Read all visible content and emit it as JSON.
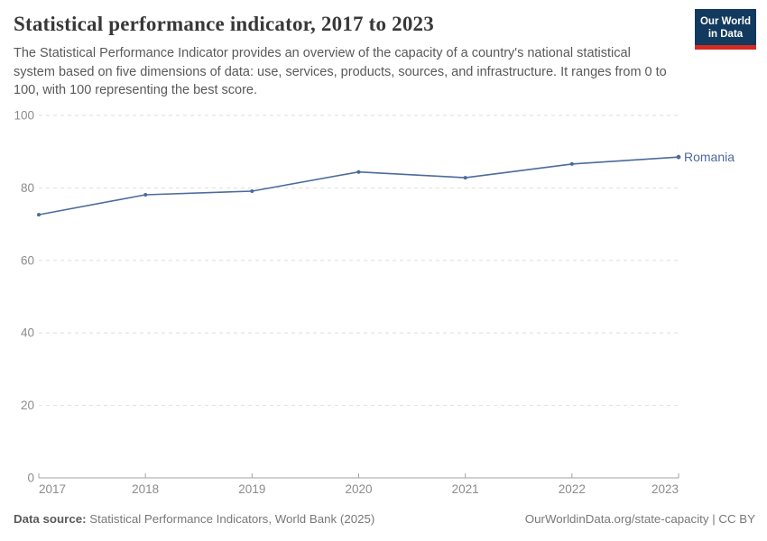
{
  "header": {
    "title": "Statistical performance indicator, 2017 to 2023",
    "subtitle": "The Statistical Performance Indicator provides an overview of the capacity of a country's national statistical system based on five dimensions of data: use, services, products, sources, and infrastructure. It ranges from 0 to 100, with 100 representing the best score.",
    "logo": {
      "line1": "Our World",
      "line2": "in Data"
    }
  },
  "chart_data": {
    "type": "line",
    "title": "Statistical performance indicator, 2017 to 2023",
    "x": [
      2017,
      2018,
      2019,
      2020,
      2021,
      2022,
      2023
    ],
    "series": [
      {
        "name": "Romania",
        "values": [
          72.6,
          78.1,
          79.1,
          84.4,
          82.8,
          86.6,
          88.5
        ],
        "color": "#4C6A9C"
      }
    ],
    "xlabel": "",
    "ylabel": "",
    "ylim": [
      0,
      100
    ],
    "yticks": [
      0,
      20,
      40,
      60,
      80,
      100
    ],
    "grid": "horizontal-dashed",
    "legend": "end-of-line-label"
  },
  "footer": {
    "source_label": "Data source:",
    "source_text": "Statistical Performance Indicators, World Bank (2025)",
    "credit": "OurWorldinData.org/state-capacity | CC BY"
  },
  "colors": {
    "accent_line": "#4C6A9C",
    "logo_background": "#12395E",
    "logo_stripe": "#D42B21",
    "grid": "#dedede",
    "axis": "#a3a3a3",
    "tick_text": "#8c8c8c"
  }
}
